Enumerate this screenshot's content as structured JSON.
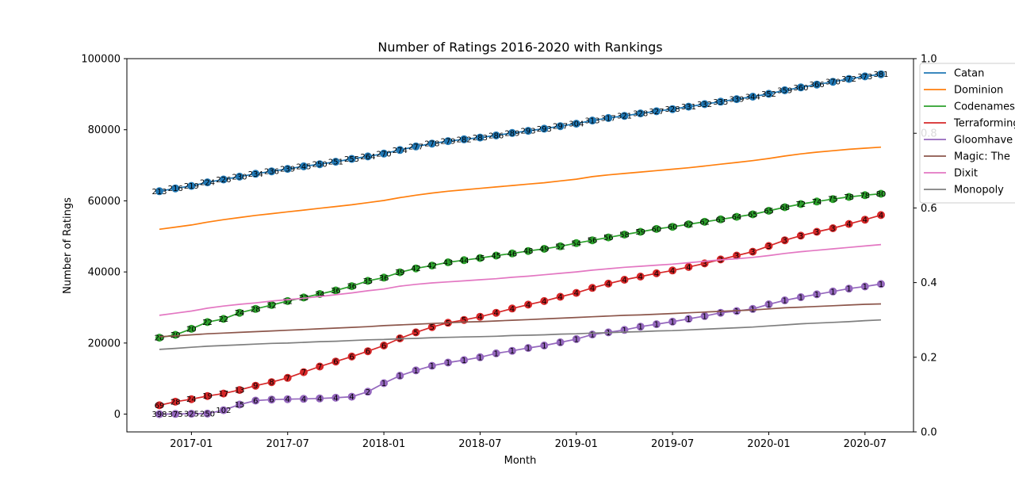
{
  "chart_data": {
    "type": "line",
    "title": "Number of Ratings 2016-2020 with Rankings",
    "xlabel": "Month",
    "ylabel": "Number of Ratings",
    "x": [
      "2016-11",
      "2016-12",
      "2017-01",
      "2017-02",
      "2017-03",
      "2017-04",
      "2017-05",
      "2017-06",
      "2017-07",
      "2017-08",
      "2017-09",
      "2017-10",
      "2017-11",
      "2017-12",
      "2018-01",
      "2018-02",
      "2018-03",
      "2018-04",
      "2018-05",
      "2018-06",
      "2018-07",
      "2018-08",
      "2018-09",
      "2018-10",
      "2018-11",
      "2018-12",
      "2019-01",
      "2019-02",
      "2019-03",
      "2019-04",
      "2019-05",
      "2019-06",
      "2019-07",
      "2019-08",
      "2019-09",
      "2019-10",
      "2019-11",
      "2019-12",
      "2020-01",
      "2020-02",
      "2020-03",
      "2020-04",
      "2020-05",
      "2020-06",
      "2020-07",
      "2020-08"
    ],
    "x_ticks": [
      {
        "date": "2017-01",
        "label": "2017-01"
      },
      {
        "date": "2017-07",
        "label": "2017-07"
      },
      {
        "date": "2018-01",
        "label": "2018-01"
      },
      {
        "date": "2018-07",
        "label": "2018-07"
      },
      {
        "date": "2019-01",
        "label": "2019-01"
      },
      {
        "date": "2019-07",
        "label": "2019-07"
      },
      {
        "date": "2020-01",
        "label": "2020-01"
      },
      {
        "date": "2020-07",
        "label": "2020-07"
      }
    ],
    "ylim": [
      -5000,
      100000
    ],
    "y_ticks": [
      0,
      20000,
      40000,
      60000,
      80000,
      100000
    ],
    "y2lim": [
      0,
      1
    ],
    "y2_ticks": [
      "0.0",
      "0.2",
      "0.4",
      "0.6",
      "0.8",
      "1.0"
    ],
    "legend_position": "top-right",
    "grid": false,
    "series": [
      {
        "name": "Catan",
        "color": "#1f77b4",
        "markers": true,
        "values": [
          62700,
          63500,
          64200,
          65200,
          66000,
          66800,
          67600,
          68300,
          69000,
          69700,
          70300,
          71000,
          71800,
          72500,
          73300,
          74300,
          75300,
          76100,
          76800,
          77300,
          77800,
          78400,
          79100,
          79700,
          80300,
          81000,
          81700,
          82600,
          83300,
          83900,
          84600,
          85200,
          85800,
          86500,
          87200,
          87900,
          88600,
          89300,
          90100,
          91100,
          91900,
          92700,
          93500,
          94300,
          95000,
          95600
        ],
        "labels": [
          "213",
          "216",
          "219",
          "224",
          "226",
          "230",
          "234",
          "236",
          "239",
          "245",
          "250",
          "251",
          "255",
          "264",
          "270",
          "274",
          "277",
          "278",
          "279",
          "282",
          "283",
          "286",
          "289",
          "293",
          "293",
          "297",
          "304",
          "313",
          "317",
          "321",
          "328",
          "327",
          "328",
          "331",
          "332",
          "335",
          "339",
          "344",
          "352",
          "359",
          "360",
          "366",
          "370",
          "372",
          "373",
          "381"
        ]
      },
      {
        "name": "Dominion",
        "color": "#ff7f0e",
        "markers": false,
        "values": [
          52000,
          52600,
          53200,
          54000,
          54700,
          55300,
          55900,
          56400,
          56900,
          57400,
          57900,
          58400,
          58900,
          59500,
          60100,
          60900,
          61600,
          62200,
          62700,
          63100,
          63500,
          63900,
          64300,
          64700,
          65100,
          65600,
          66100,
          66800,
          67300,
          67700,
          68100,
          68500,
          68900,
          69300,
          69800,
          70300,
          70800,
          71300,
          71900,
          72600,
          73200,
          73700,
          74100,
          74500,
          74800,
          75100
        ]
      },
      {
        "name": "Codenames",
        "color": "#2ca02c",
        "markers": true,
        "values": [
          21500,
          22300,
          24000,
          25900,
          26800,
          28500,
          29600,
          30700,
          31800,
          32800,
          33800,
          34800,
          36000,
          37500,
          38400,
          39900,
          41000,
          41800,
          42700,
          43300,
          43900,
          44600,
          45200,
          45900,
          46500,
          47200,
          48100,
          48900,
          49700,
          50500,
          51300,
          52100,
          52700,
          53400,
          54100,
          54800,
          55500,
          56200,
          57200,
          58200,
          59100,
          59800,
          60500,
          61100,
          61600,
          62000
        ],
        "labels": [
          "20",
          "20",
          "20",
          "22",
          "22",
          "24",
          "28",
          "32",
          "32",
          "33",
          "34",
          "36",
          "36",
          "35",
          "36",
          "39",
          "42",
          "42",
          "43",
          "44",
          "45",
          "45",
          "46",
          "48",
          "49",
          "52",
          "54",
          "56",
          "56",
          "58",
          "59",
          "60",
          "60",
          "62",
          "62",
          "63",
          "64",
          "65",
          "65",
          "68",
          "72",
          "74",
          "75",
          "78",
          "78",
          "80"
        ]
      },
      {
        "name": "Terraforming Mars",
        "color": "#d62728",
        "markers": true,
        "values": [
          2500,
          3500,
          4200,
          5100,
          5800,
          6800,
          8000,
          9000,
          10200,
          11800,
          13400,
          14800,
          16200,
          17700,
          19300,
          21300,
          23000,
          24500,
          25700,
          26500,
          27400,
          28500,
          29700,
          30800,
          31800,
          33000,
          34100,
          35500,
          36700,
          37800,
          38700,
          39600,
          40400,
          41400,
          42400,
          43500,
          44600,
          45700,
          47300,
          48900,
          50200,
          51300,
          52300,
          53500,
          54700,
          56000
        ],
        "labels": [
          "69",
          "28",
          "24",
          "19",
          "17",
          "13",
          "9",
          "8",
          "7",
          "7",
          "7",
          "6",
          "6",
          "6",
          "6",
          "5",
          "5",
          "5",
          "5",
          "5",
          "4",
          "4",
          "4",
          "4",
          "4",
          "4",
          "4",
          "4",
          "4",
          "4",
          "4",
          "4",
          "4",
          "4",
          "3",
          "3",
          "3",
          "3",
          "3",
          "3",
          "3",
          "3",
          "3",
          "4",
          "4",
          "4"
        ]
      },
      {
        "name": "Gloomhaven",
        "color": "#9467bd",
        "markers": true,
        "values": [
          0,
          50,
          100,
          150,
          1100,
          2700,
          3800,
          4100,
          4200,
          4300,
          4400,
          4600,
          4900,
          6300,
          8700,
          10800,
          12300,
          13600,
          14500,
          15200,
          16000,
          17100,
          17800,
          18600,
          19300,
          20200,
          21100,
          22400,
          23000,
          23700,
          24600,
          25300,
          26000,
          26800,
          27600,
          28500,
          29000,
          29600,
          30900,
          32000,
          32900,
          33700,
          34500,
          35300,
          35900,
          36600
        ],
        "labels": [
          "398",
          "375",
          "325",
          "250",
          "102",
          "15",
          "6",
          "6",
          "4",
          "4",
          "4",
          "4",
          "4",
          "2",
          "1",
          "1",
          "1",
          "1",
          "1",
          "1",
          "1",
          "1",
          "1",
          "1",
          "1",
          "1",
          "1",
          "1",
          "1",
          "1",
          "1",
          "1",
          "1",
          "1",
          "1",
          "1",
          "1",
          "1",
          "1",
          "1",
          "1",
          "1",
          "1",
          "1",
          "1",
          "1"
        ],
        "label_count": 46
      },
      {
        "name": "Magic: The Gathering",
        "color": "#8c564b",
        "markers": false,
        "values": [
          21800,
          22000,
          22300,
          22600,
          22800,
          23000,
          23200,
          23400,
          23600,
          23800,
          24000,
          24200,
          24400,
          24600,
          24900,
          25100,
          25300,
          25500,
          25700,
          25900,
          26000,
          26200,
          26400,
          26600,
          26800,
          27000,
          27200,
          27400,
          27600,
          27800,
          27900,
          28100,
          28300,
          28500,
          28700,
          28900,
          29100,
          29300,
          29600,
          29900,
          30100,
          30300,
          30500,
          30700,
          30900,
          31000
        ]
      },
      {
        "name": "Dixit",
        "color": "#e377c2",
        "markers": false,
        "values": [
          27800,
          28400,
          29000,
          29800,
          30400,
          30900,
          31300,
          31800,
          32200,
          32600,
          33100,
          33600,
          34100,
          34700,
          35200,
          36000,
          36500,
          36900,
          37200,
          37500,
          37800,
          38100,
          38500,
          38800,
          39200,
          39600,
          40000,
          40500,
          40900,
          41300,
          41600,
          41900,
          42200,
          42600,
          43000,
          43400,
          43700,
          44100,
          44600,
          45200,
          45700,
          46100,
          46500,
          46900,
          47300,
          47700
        ]
      },
      {
        "name": "Monopoly",
        "color": "#7f7f7f",
        "markers": false,
        "values": [
          18200,
          18500,
          18800,
          19100,
          19300,
          19500,
          19700,
          19900,
          20000,
          20200,
          20400,
          20500,
          20700,
          20900,
          21000,
          21200,
          21300,
          21500,
          21600,
          21700,
          21800,
          21900,
          22100,
          22200,
          22300,
          22500,
          22600,
          22800,
          22900,
          23100,
          23200,
          23400,
          23500,
          23700,
          23900,
          24100,
          24300,
          24500,
          24800,
          25100,
          25400,
          25600,
          25800,
          26000,
          26300,
          26500
        ]
      }
    ],
    "legend_entries": [
      "Catan",
      "Dominion",
      "Codenames",
      "Terraforming",
      "Gloomhave",
      "Magic: The",
      "Dixit",
      "Monopoly"
    ]
  }
}
